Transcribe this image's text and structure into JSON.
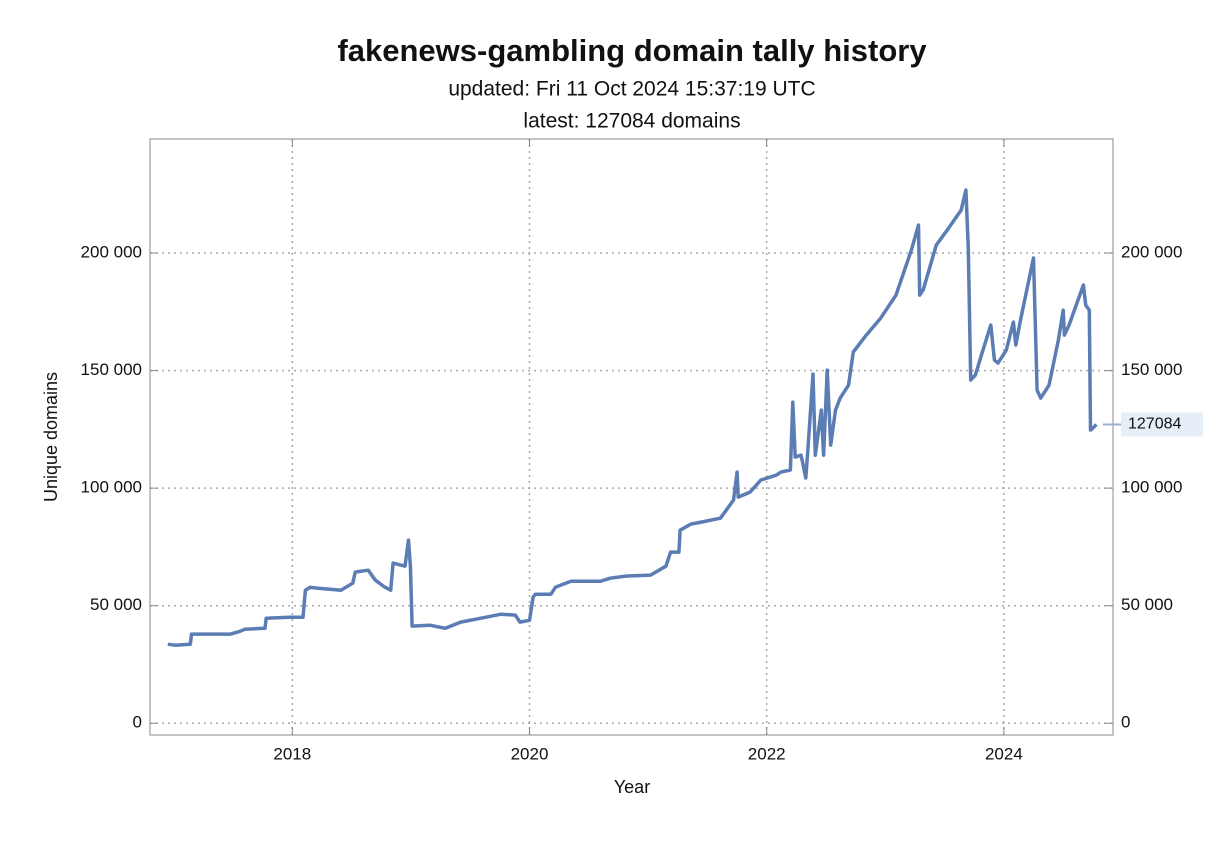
{
  "chart_data": {
    "type": "line",
    "title": "fakenews-gambling domain tally history",
    "subtitle": "updated: Fri 11 Oct 2024 15:37:19 UTC",
    "subtitle2": "latest: 127084 domains",
    "xlabel": "Year",
    "ylabel": "Unique domains",
    "color": "#5b7db4",
    "grid": true,
    "xlim": [
      2016.8,
      2024.92
    ],
    "ylim": [
      -5000,
      248500
    ],
    "xticks": [
      2018,
      2020,
      2022,
      2024
    ],
    "yticks": [
      0,
      {
        "value": 50000,
        "label": "50 000"
      },
      {
        "value": 100000,
        "label": "100 000"
      },
      {
        "value": 150000,
        "label": "150 000"
      },
      {
        "value": 200000,
        "label": "200 000"
      }
    ],
    "x": [
      2016.95,
      2017.01,
      2017.14,
      2017.15,
      2017.48,
      2017.56,
      2017.6,
      2017.77,
      2017.78,
      2017.97,
      2018.09,
      2018.11,
      2018.15,
      2018.22,
      2018.41,
      2018.51,
      2018.53,
      2018.64,
      2018.7,
      2018.78,
      2018.83,
      2018.85,
      2018.95,
      2018.98,
      2018.996,
      2019.01,
      2019.16,
      2019.29,
      2019.42,
      2019.59,
      2019.67,
      2019.76,
      2019.88,
      2019.92,
      2020.0,
      2020.03,
      2020.05,
      2020.18,
      2020.22,
      2020.35,
      2020.6,
      2020.68,
      2020.81,
      2021.02,
      2021.15,
      2021.19,
      2021.26,
      2021.27,
      2021.36,
      2021.49,
      2021.61,
      2021.72,
      2021.75,
      2021.76,
      2021.86,
      2021.95,
      2022.08,
      2022.12,
      2022.2,
      2022.22,
      2022.24,
      2022.29,
      2022.33,
      2022.35,
      2022.39,
      2022.41,
      2022.46,
      2022.48,
      2022.51,
      2022.54,
      2022.58,
      2022.62,
      2022.69,
      2022.73,
      2022.84,
      2022.96,
      2023.09,
      2023.22,
      2023.28,
      2023.29,
      2023.32,
      2023.43,
      2023.51,
      2023.64,
      2023.68,
      2023.7,
      2023.72,
      2023.76,
      2023.81,
      2023.89,
      2023.92,
      2023.95,
      2024.02,
      2024.08,
      2024.1,
      2024.14,
      2024.25,
      2024.28,
      2024.31,
      2024.38,
      2024.46,
      2024.5,
      2024.51,
      2024.55,
      2024.67,
      2024.69,
      2024.72,
      2024.73,
      2024.75,
      2024.78
    ],
    "values": [
      33600,
      33200,
      33600,
      37900,
      37900,
      39100,
      40000,
      40400,
      44700,
      45100,
      45100,
      56600,
      57800,
      57400,
      56600,
      59600,
      64300,
      65100,
      60900,
      57900,
      56600,
      68100,
      66800,
      77900,
      66800,
      41300,
      41700,
      40400,
      43000,
      44700,
      45500,
      46400,
      46000,
      43000,
      43800,
      53600,
      54900,
      54900,
      57900,
      60400,
      60400,
      61700,
      62600,
      63000,
      66800,
      72800,
      72800,
      82100,
      84700,
      86000,
      87200,
      94900,
      106800,
      96200,
      98300,
      103400,
      105500,
      106800,
      107700,
      136600,
      113200,
      114000,
      104300,
      118300,
      148500,
      114000,
      133200,
      114000,
      150200,
      118300,
      133200,
      138300,
      143800,
      157900,
      165100,
      172300,
      182100,
      201300,
      211900,
      182100,
      184300,
      203400,
      208900,
      218300,
      226800,
      202100,
      146000,
      148100,
      156600,
      169400,
      154500,
      153200,
      158700,
      170600,
      160900,
      171500,
      197900,
      141700,
      138300,
      143800,
      163000,
      175700,
      165100,
      169400,
      186400,
      177900,
      175700,
      124700,
      125500,
      127084
    ]
  }
}
